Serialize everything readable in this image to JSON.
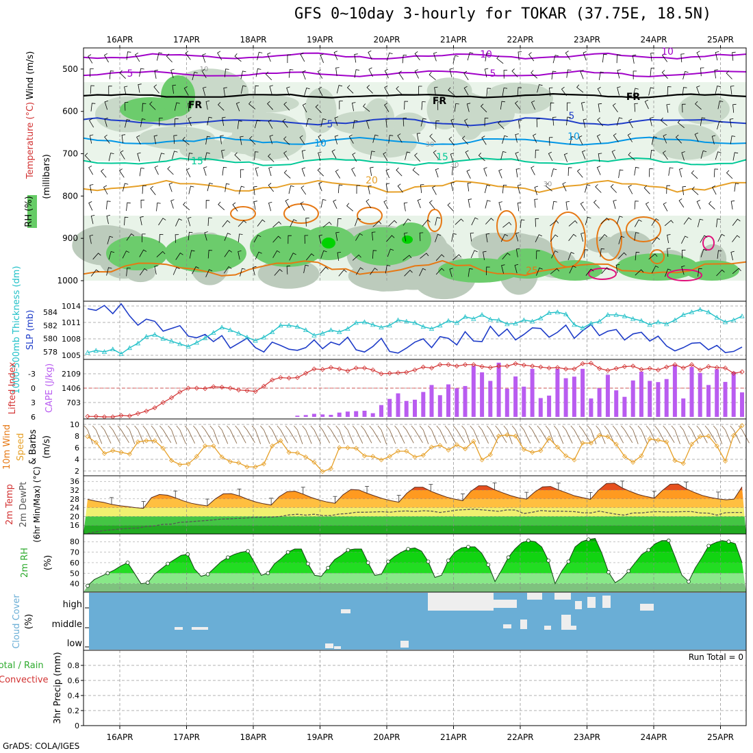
{
  "title": "GFS 0~10day 3-hourly for TOKAR (37.75E, 18.5N)",
  "credit": "GrADS: COLA/IGES",
  "run_total": "Run Total = 0",
  "dates": [
    "16APR",
    "17APR",
    "18APR",
    "19APR",
    "20APR",
    "21APR",
    "22APR",
    "23APR",
    "24APR",
    "25APR"
  ],
  "colors": {
    "purple": "#a000c8",
    "blue": "#1e3cc8",
    "lightblue": "#0096e6",
    "teal": "#00c896",
    "gold": "#e6a028",
    "orange": "#e67814",
    "magenta": "#e0107a",
    "cyan": "#20c0c8",
    "lavender": "#b95cf0",
    "red": "#d23232",
    "green": "#2daa2d",
    "cloud": "#6aaed6"
  },
  "chart_data": [
    {
      "type": "contour",
      "panel": "upper-air",
      "ylabels": [
        "Wind (m/s)",
        "Temperature (°C)",
        "RH (%)",
        "(millibars)"
      ],
      "y_ticks": [
        500,
        600,
        700,
        800,
        900,
        1000
      ],
      "contour_labels": {
        "purple": [
          "10",
          "5",
          "10",
          "5"
        ],
        "black": [
          "FR",
          "FR",
          "FR"
        ],
        "blue": [
          "5",
          "5"
        ],
        "lightblue": [
          "10",
          "10"
        ],
        "teal": [
          "15",
          "15"
        ],
        "gold": [
          "20"
        ],
        "orange": [
          "25"
        ],
        "rh": [
          "10",
          "30",
          "30",
          "30"
        ]
      }
    },
    {
      "type": "line",
      "panel": "slp-thickness",
      "ylabels": [
        "1000-500mb Thickness (dm)",
        "SLP (mb)"
      ],
      "left_ticks": [
        578,
        580,
        582,
        584
      ],
      "right_ticks": [
        1005,
        1008,
        1011,
        1014
      ],
      "series": [
        {
          "name": "SLP (mb)",
          "values": [
            1013.5,
            1013.2,
            1014.1,
            1012.6,
            1014.4,
            1012.2,
            1010.5,
            1011.6,
            1011.2,
            1009.4,
            1009.9,
            1010.4,
            1008.5,
            1008.2,
            1008.8,
            1007.5,
            1008.6,
            1006.3,
            1007.2,
            1008.1,
            1006.4,
            1005.6,
            1007.4,
            1006.8,
            1006.1,
            1005.9,
            1006.4,
            1007.8,
            1006.2,
            1007.4,
            1006.9,
            1008.3,
            1006.0,
            1005.6,
            1006.6,
            1008.1,
            1005.7,
            1005.4,
            1006.3,
            1007.4,
            1008.0,
            1006.4,
            1008.4,
            1008.1,
            1006.9,
            1009.3,
            1007.6,
            1007.5,
            1010.3,
            1008.5,
            1009.8,
            1007.8,
            1008.8,
            1010.0,
            1009.9,
            1008.3,
            1009.2,
            1010.5,
            1008.1,
            1009.5,
            1010.6,
            1008.6,
            1009.4,
            1009.7,
            1007.8,
            1008.9,
            1009.2,
            1007.6,
            1008.5,
            1006.7,
            1005.8,
            1006.4,
            1007.2,
            1007.3,
            1006.0,
            1006.8,
            1005.5,
            1005.7,
            1006.5
          ]
        },
        {
          "name": "1000-500mb Thickness (dm)",
          "values": [
            577.9,
            578.2,
            578.0,
            578.4,
            577.7,
            578.6,
            579.3,
            580.3,
            580.6,
            580.0,
            579.6,
            579.2,
            578.8,
            579.4,
            580.1,
            580.9,
            581.7,
            581.3,
            580.8,
            580.2,
            579.7,
            580.2,
            581.0,
            582.0,
            582.0,
            581.8,
            581.3,
            580.5,
            580.8,
            581.3,
            581.0,
            581.5,
            582.4,
            582.5,
            582.1,
            581.7,
            582.0,
            582.8,
            582.6,
            582.4,
            581.8,
            581.5,
            582.0,
            582.7,
            582.4,
            583.3,
            583.0,
            583.6,
            582.9,
            582.8,
            582.2,
            582.3,
            582.8,
            582.6,
            583.1,
            583.9,
            584.0,
            583.7,
            582.1,
            581.6,
            582.3,
            582.6,
            583.6,
            583.6,
            583.4,
            583.0,
            582.7,
            582.1,
            582.5,
            582.2,
            582.8,
            583.6,
            584.0,
            584.4,
            584.0,
            583.2,
            582.5,
            582.8,
            583.4
          ]
        }
      ]
    },
    {
      "type": "bar",
      "panel": "cape-lifted-index",
      "ylabels": [
        "Lifted Index",
        "CAPE (J/kg)"
      ],
      "left_ticks": [
        "-3",
        "0",
        "3",
        "6"
      ],
      "right_ticks": [
        703,
        1406,
        2109
      ],
      "series": [
        {
          "name": "CAPE (J/kg)",
          "values": [
            0,
            0,
            0,
            0,
            0,
            0,
            0,
            0,
            0,
            0,
            0,
            0,
            0,
            0,
            0,
            0,
            0,
            0,
            0,
            0,
            0,
            0,
            0,
            0,
            0,
            60,
            90,
            150,
            120,
            100,
            210,
            260,
            280,
            300,
            180,
            580,
            880,
            1150,
            780,
            840,
            1220,
            1560,
            1060,
            1590,
            1400,
            1510,
            2500,
            2180,
            1760,
            2650,
            1380,
            1980,
            1480,
            2350,
            920,
            1040,
            2350,
            1890,
            1970,
            2350,
            900,
            1400,
            2060,
            1300,
            980,
            1780,
            2210,
            1760,
            1700,
            1850,
            2530,
            900,
            2440,
            2150,
            1560,
            2330,
            1710,
            2200,
            1200
          ]
        },
        {
          "name": "Lifted Index",
          "values": [
            5.9,
            5.9,
            6.0,
            6.0,
            5.7,
            5.8,
            5.3,
            4.8,
            4.1,
            3.0,
            2.0,
            0.8,
            0.0,
            0.0,
            0.1,
            -0.3,
            -0.2,
            0.0,
            0.4,
            0.5,
            0.7,
            -0.4,
            -1.7,
            -2.2,
            -2.1,
            -2.2,
            -3.1,
            -4.0,
            -3.9,
            -4.3,
            -4.0,
            -3.6,
            -4.2,
            -4.2,
            -3.8,
            -3.0,
            -3.1,
            -3.2,
            -3.3,
            -3.8,
            -4.4,
            -4.2,
            -4.9,
            -4.9,
            -4.6,
            -4.9,
            -4.9,
            -4.5,
            -4.3,
            -4.6,
            -4.6,
            -5.1,
            -4.8,
            -4.6,
            -4.4,
            -4.2,
            -4.3,
            -4.0,
            -4.0,
            -5.1,
            -5.2,
            -4.1,
            -3.7,
            -4.1,
            -4.5,
            -4.6,
            -3.9,
            -4.1,
            -3.8,
            -4.4,
            -4.9,
            -4.2,
            -4.9,
            -3.8,
            -4.5,
            -4.3,
            -4.2,
            -3.1,
            -3.4
          ]
        }
      ]
    },
    {
      "type": "line",
      "panel": "10m-wind",
      "ylabels": [
        "10m Wind",
        "Speed",
        "& Barbs",
        "(m/s)"
      ],
      "y_ticks": [
        2,
        4,
        6,
        8,
        10
      ],
      "series": [
        {
          "name": "Speed",
          "values": [
            7.9,
            6.9,
            5.0,
            5.5,
            5.2,
            4.9,
            7.0,
            7.2,
            7.2,
            5.9,
            3.8,
            3.1,
            3.2,
            4.5,
            6.3,
            6.3,
            4.4,
            3.6,
            3.4,
            2.7,
            2.7,
            3.2,
            6.3,
            7.2,
            5.2,
            5.1,
            4.4,
            3.5,
            1.9,
            2.4,
            6.0,
            6.0,
            5.9,
            4.6,
            4.5,
            3.9,
            4.5,
            5.4,
            5.4,
            4.4,
            4.7,
            6.1,
            6.4,
            5.6,
            6.5,
            5.8,
            7.1,
            3.9,
            4.8,
            8.0,
            8.2,
            8.0,
            5.7,
            5.2,
            5.5,
            7.6,
            6.1,
            4.6,
            3.9,
            6.8,
            6.8,
            8.1,
            7.9,
            6.6,
            4.5,
            3.5,
            4.6,
            7.5,
            7.3,
            7.0,
            3.8,
            3.3,
            6.6,
            7.9,
            8.0,
            6.3,
            3.7,
            8.1,
            9.8
          ]
        }
      ]
    },
    {
      "type": "area",
      "panel": "2m-temp",
      "ylabels": [
        "2m Temp",
        "2m DewPt",
        "(6hr Min/Max) (°C)"
      ],
      "y_ticks": [
        16,
        20,
        24,
        28,
        32,
        36
      ],
      "series": [
        {
          "name": "2m Temp",
          "values": [
            27.8,
            27.0,
            26.4,
            25.5,
            24.9,
            24.5,
            24.0,
            23.7,
            28.6,
            30.0,
            29.7,
            28.5,
            27.1,
            26.0,
            25.3,
            24.8,
            28.0,
            30.3,
            30.4,
            29.4,
            27.9,
            26.7,
            25.8,
            25.2,
            29.0,
            31.3,
            31.5,
            30.2,
            28.7,
            27.5,
            26.6,
            26.0,
            29.9,
            32.3,
            32.1,
            30.6,
            29.3,
            28.1,
            27.2,
            26.5,
            30.6,
            33.3,
            33.3,
            31.5,
            30.1,
            28.8,
            27.9,
            27.2,
            31.4,
            34.0,
            34.0,
            32.2,
            30.8,
            29.5,
            28.5,
            27.9,
            31.1,
            33.5,
            33.7,
            32.1,
            30.8,
            29.4,
            28.6,
            27.8,
            31.9,
            35.0,
            35.2,
            33.0,
            31.4,
            30.0,
            29.1,
            28.3,
            31.8,
            34.7,
            34.8,
            32.6,
            31.0,
            29.6,
            28.7,
            28.0,
            27.6,
            27.9,
            33.5
          ]
        },
        {
          "name": "2m DewPt",
          "values": [
            12.2,
            13.0,
            13.6,
            13.9,
            14.3,
            14.6,
            14.7,
            15.4,
            15.7,
            16.4,
            16.5,
            17.3,
            17.5,
            17.8,
            18.1,
            18.4,
            18.8,
            18.9,
            19.1,
            19.3,
            19.6,
            19.6,
            19.7,
            20.0,
            20.7,
            21.0,
            20.6,
            21.0,
            20.4,
            20.4,
            21.1,
            21.3,
            21.9,
            21.9,
            22.0,
            22.2,
            21.9,
            22.3,
            22.5,
            22.2,
            22.6,
            22.4,
            21.8,
            22.3,
            22.9,
            23.1,
            23.3,
            23.0,
            22.7,
            22.3,
            23.0,
            22.9,
            21.3,
            21.9,
            22.7,
            22.4,
            22.4,
            22.3,
            22.2,
            21.7,
            21.6,
            22.4,
            21.7,
            21.0,
            20.6,
            21.6,
            21.6,
            22.0,
            22.2,
            22.0,
            22.1,
            22.2,
            22.2,
            21.6,
            21.5,
            20.6,
            21.7,
            21.8,
            21.8
          ]
        }
      ]
    },
    {
      "type": "area",
      "panel": "2m-rh",
      "ylabels": [
        "2m RH",
        "(%)"
      ],
      "y_ticks": [
        40,
        50,
        60,
        70,
        80
      ],
      "series": [
        {
          "name": "2m RH",
          "values": [
            38,
            44,
            47,
            50,
            53,
            57,
            60,
            50,
            40,
            41,
            49,
            54,
            59,
            63,
            67,
            68,
            54,
            47,
            49,
            55,
            61,
            65,
            68,
            70,
            71,
            60,
            48,
            50,
            59,
            64,
            70,
            73,
            73,
            59,
            48,
            47,
            55,
            63,
            67,
            72,
            73,
            73,
            60,
            48,
            49,
            61,
            66,
            70,
            73,
            74,
            71,
            61,
            46,
            48,
            62,
            70,
            74,
            75,
            75,
            69,
            58,
            42,
            53,
            65,
            73,
            79,
            81,
            80,
            75,
            62,
            40,
            52,
            61,
            75,
            80,
            82,
            83,
            69,
            51,
            41,
            45,
            52,
            60,
            68,
            72,
            78,
            81,
            81,
            65,
            48,
            42,
            55,
            65,
            76,
            79,
            81,
            80,
            78,
            60
          ]
        }
      ]
    },
    {
      "type": "heatmap",
      "panel": "cloud-cover",
      "ylabels": [
        "Cloud Cover",
        "(%)"
      ],
      "y_ticks": [
        "high",
        "middle",
        "low"
      ]
    },
    {
      "type": "line",
      "panel": "precip",
      "ylabels": [
        "Total / Rain",
        "Convective",
        "3hr Precip (mm)"
      ],
      "y_ticks": [
        "0",
        "0.2",
        "0.4",
        "0.6",
        "0.8"
      ],
      "series": [
        {
          "name": "Total / Rain",
          "values": [
            0
          ]
        },
        {
          "name": "Convective",
          "values": [
            0
          ]
        }
      ]
    }
  ]
}
